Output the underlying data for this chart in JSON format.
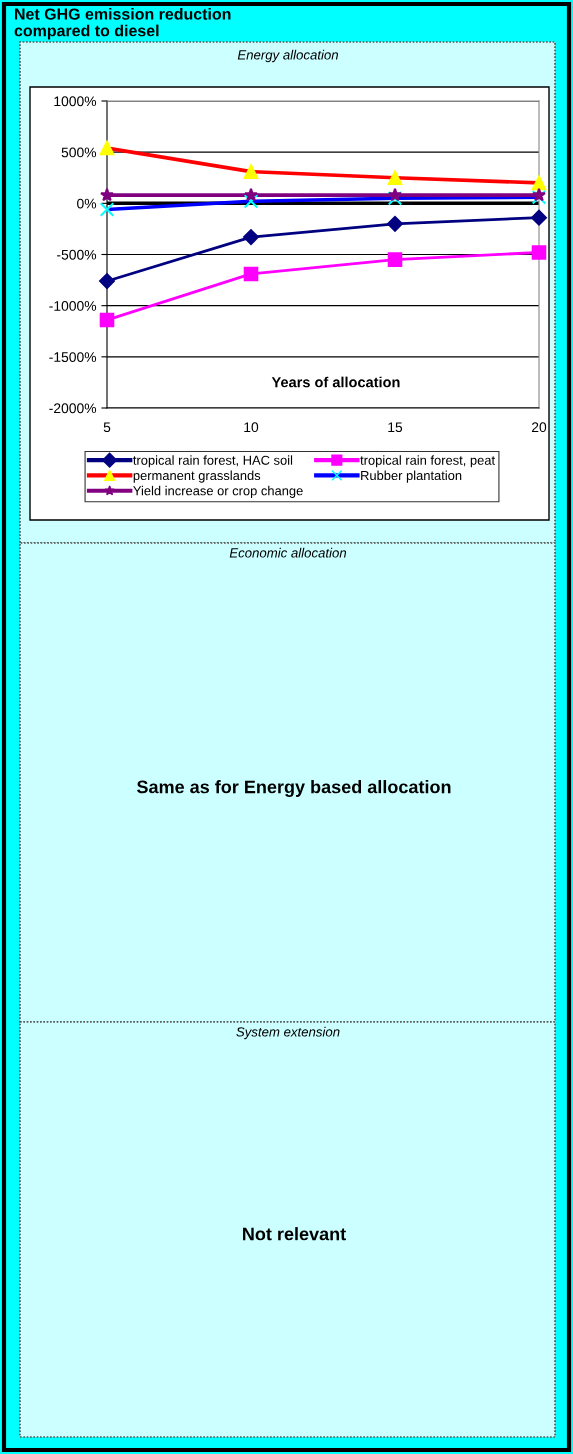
{
  "chart_data": [
    {
      "type": "line",
      "title": "Net GHG emission reduction\ncompared to diesel",
      "subtitle": "Energy allocation",
      "xlabel": "Years of allocation",
      "categories": [
        "5",
        "10",
        "15",
        "20"
      ],
      "series": [
        {
          "name": "tropical rain forest, HAC soil",
          "color": "#000080",
          "marker": "diamond",
          "values": [
            -760,
            -330,
            -200,
            -140
          ]
        },
        {
          "name": "tropical rain forest, peat",
          "color": "#ff00ff",
          "marker": "square",
          "values": [
            -1140,
            -690,
            -550,
            -480
          ]
        },
        {
          "name": "permanent grasslands",
          "color": "#ff0000",
          "colors": [
            "#ffff00",
            "#ffff00",
            "#ffff00",
            "#ffff00"
          ],
          "marker": "triangle",
          "values": [
            540,
            310,
            250,
            200
          ]
        },
        {
          "name": "Rubber plantation",
          "color": "#0000ff",
          "colors": [
            "#00ffff",
            "#00ffff",
            "#00ffff",
            "#00ffff"
          ],
          "marker": "cross",
          "values": [
            -60,
            20,
            50,
            60
          ]
        },
        {
          "name": "Yield increase or crop change",
          "color": "#800080",
          "marker": "star",
          "values": [
            80,
            80,
            80,
            80
          ]
        }
      ],
      "ylim": [
        -2000,
        1000
      ],
      "yticks": [
        {
          "value": -2000,
          "label": "-2000%"
        },
        {
          "value": -1500,
          "label": "-1500%"
        },
        {
          "value": -1000,
          "label": "-1000%"
        },
        {
          "value": -500,
          "label": "-500%"
        },
        {
          "value": 0,
          "label": "0%"
        },
        {
          "value": 500,
          "label": "500%"
        },
        {
          "value": 1000,
          "label": "1000%"
        }
      ],
      "ref_lines": [
        {
          "axis": "y",
          "value": 0,
          "color": "#000000"
        }
      ],
      "grid": "y",
      "legend": "bottom"
    },
    {
      "type": "other",
      "title": "Economic allocation",
      "annotations": [
        "Same as for Energy based allocation"
      ]
    },
    {
      "type": "other",
      "title": "System extension",
      "annotations": [
        "Not relevant"
      ]
    }
  ]
}
